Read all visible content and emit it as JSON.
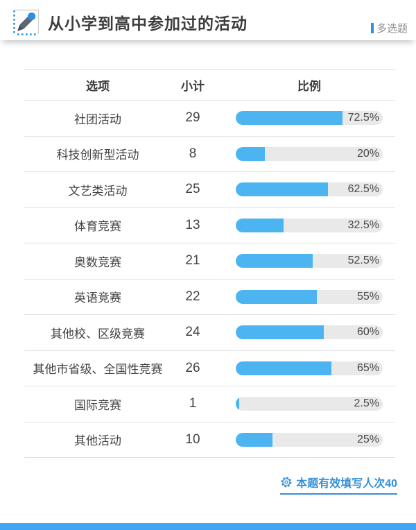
{
  "header": {
    "title": "从小学到高中参加过的活动",
    "question_type": "多选题"
  },
  "table": {
    "columns": [
      "选项",
      "小计",
      "比例"
    ],
    "rows": [
      {
        "option": "社团活动",
        "count": "29",
        "percent": "72.5%",
        "value": 72.5
      },
      {
        "option": "科技创新型活动",
        "count": "8",
        "percent": "20%",
        "value": 20
      },
      {
        "option": "文艺类活动",
        "count": "25",
        "percent": "62.5%",
        "value": 62.5
      },
      {
        "option": "体育竞赛",
        "count": "13",
        "percent": "32.5%",
        "value": 32.5
      },
      {
        "option": "奥数竞赛",
        "count": "21",
        "percent": "52.5%",
        "value": 52.5
      },
      {
        "option": "英语竞赛",
        "count": "22",
        "percent": "55%",
        "value": 55
      },
      {
        "option": "其他校、区级竞赛",
        "count": "24",
        "percent": "60%",
        "value": 60
      },
      {
        "option": "其他市省级、全国性竞赛",
        "count": "26",
        "percent": "65%",
        "value": 65
      },
      {
        "option": "国际竞赛",
        "count": "1",
        "percent": "2.5%",
        "value": 2.5
      },
      {
        "option": "其他活动",
        "count": "10",
        "percent": "25%",
        "value": 25
      }
    ]
  },
  "footer": {
    "valid_label": "本题有效填写人次40"
  },
  "colors": {
    "bar_fill": "#4cb4f0",
    "bar_track": "#e9e9e9",
    "accent_blue": "#2f8fdd",
    "footer_blue": "#3590d8",
    "strip_blue": "#41a4f5"
  },
  "chart_data": {
    "type": "bar",
    "title": "从小学到高中参加过的活动",
    "subtitle": "多选题",
    "categories": [
      "社团活动",
      "科技创新型活动",
      "文艺类活动",
      "体育竞赛",
      "奥数竞赛",
      "英语竞赛",
      "其他校、区级竞赛",
      "其他市省级、全国性竞赛",
      "国际竞赛",
      "其他活动"
    ],
    "series": [
      {
        "name": "小计",
        "values": [
          29,
          8,
          25,
          13,
          21,
          22,
          24,
          26,
          1,
          10
        ]
      },
      {
        "name": "比例(%)",
        "values": [
          72.5,
          20,
          62.5,
          32.5,
          52.5,
          55,
          60,
          65,
          2.5,
          25
        ]
      }
    ],
    "xlabel": "",
    "ylabel": "比例",
    "xlim": [
      0,
      100
    ],
    "orientation": "horizontal",
    "grid": false,
    "legend_position": "none",
    "annotation": "本题有效填写人次40"
  }
}
